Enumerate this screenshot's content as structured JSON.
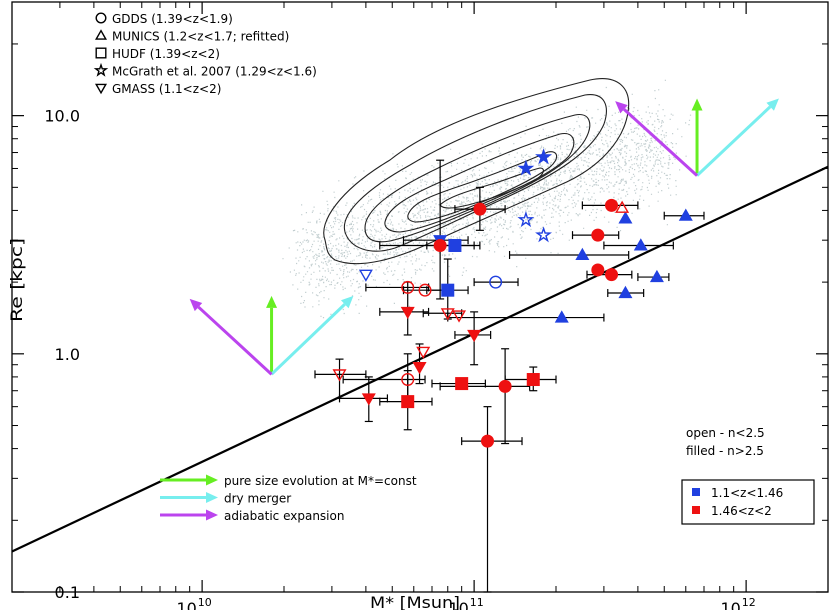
{
  "chart_data": {
    "type": "scatter",
    "title": "",
    "xlabel": "M* [Msun]",
    "ylabel": "Re [kpc]",
    "xscale": "log",
    "yscale": "log",
    "xlim": [
      2000000000.0,
      2000000000000.0
    ],
    "ylim": [
      0.1,
      30
    ],
    "x_ticks": [
      {
        "value": 10000000000.0,
        "base": "10",
        "exp": "10"
      },
      {
        "value": 100000000000.0,
        "base": "10",
        "exp": "11"
      },
      {
        "value": 1000000000000.0,
        "base": "10",
        "exp": "12"
      }
    ],
    "y_ticks": [
      {
        "value": 0.1,
        "label": "0.1"
      },
      {
        "value": 1.0,
        "label": "1.0"
      },
      {
        "value": 10.0,
        "label": "10.0"
      }
    ],
    "legend_samples": [
      {
        "marker": "circle",
        "text": "GDDS (1.39<z<1.9)"
      },
      {
        "marker": "triangle-up",
        "text": "MUNICS (1.2<z<1.7; refitted)"
      },
      {
        "marker": "square",
        "text": "HUDF (1.39<z<2)"
      },
      {
        "marker": "star",
        "text": "McGrath et al. 2007 (1.29<z<1.6)"
      },
      {
        "marker": "triangle-down",
        "text": "GMASS (1.1<z<2)"
      }
    ],
    "legend_arrows": [
      {
        "color": "#66ee22",
        "text": "pure size evolution at M*=const"
      },
      {
        "color": "#77eeee",
        "text": "dry merger"
      },
      {
        "color": "#bb44ee",
        "text": "adiabatic expansion"
      }
    ],
    "fill_note": [
      "open - n<2.5",
      "filled - n>2.5"
    ],
    "redshift_legend": [
      {
        "color": "#2040e0",
        "text": "1.1<z<1.46"
      },
      {
        "color": "#ee1111",
        "text": "1.46<z<2"
      }
    ],
    "colors": {
      "low_z": "#2040e0",
      "high_z": "#ee1111",
      "errorbar": "#000000",
      "contour": "#222222",
      "cloud": "#9aaeb0"
    },
    "reference_line": {
      "x": [
        2000000000.0,
        2000000000000.0
      ],
      "y": [
        0.148,
        6.1
      ]
    },
    "arrow_groups": [
      {
        "origin": [
          18000000000.0,
          0.82
        ],
        "vectors": [
          {
            "type": "size",
            "to": [
              18000000000.0,
              1.75
            ]
          },
          {
            "type": "merger",
            "to": [
              36000000000.0,
              1.75
            ]
          },
          {
            "type": "expansion",
            "to": [
              9000000000.0,
              1.7
            ]
          }
        ]
      },
      {
        "origin": [
          660000000000.0,
          5.6
        ],
        "vectors": [
          {
            "type": "size",
            "to": [
              660000000000.0,
              11.8
            ]
          },
          {
            "type": "merger",
            "to": [
              1320000000000.0,
              11.8
            ]
          },
          {
            "type": "expansion",
            "to": [
              330000000000.0,
              11.5
            ]
          }
        ]
      }
    ],
    "points": [
      {
        "x": 75000000000.0,
        "y": 3.0,
        "marker": "triangle-down",
        "z": "low",
        "filled": true,
        "xerr": [
          55000000000.0,
          95000000000.0
        ],
        "yerr": [
          1.7,
          6.5
        ]
      },
      {
        "x": 40000000000.0,
        "y": 2.15,
        "marker": "triangle-down",
        "z": "low",
        "filled": false
      },
      {
        "x": 155000000000.0,
        "y": 6.0,
        "marker": "star",
        "z": "low",
        "filled": true
      },
      {
        "x": 180000000000.0,
        "y": 6.7,
        "marker": "star",
        "z": "low",
        "filled": true
      },
      {
        "x": 155000000000.0,
        "y": 3.65,
        "marker": "star",
        "z": "low",
        "filled": false
      },
      {
        "x": 180000000000.0,
        "y": 3.15,
        "marker": "star",
        "z": "low",
        "filled": false
      },
      {
        "x": 120000000000.0,
        "y": 2.0,
        "marker": "circle",
        "z": "low",
        "filled": false,
        "xerr": [
          100000000000.0,
          145000000000.0
        ]
      },
      {
        "x": 80000000000.0,
        "y": 1.85,
        "marker": "square",
        "z": "low",
        "filled": true,
        "xerr": [
          67000000000.0,
          95000000000.0
        ],
        "yerr": [
          1.4,
          2.5
        ]
      },
      {
        "x": 85000000000.0,
        "y": 2.85,
        "marker": "square",
        "z": "low",
        "filled": true,
        "xerr": [
          67000000000.0,
          105000000000.0
        ]
      },
      {
        "x": 360000000000.0,
        "y": 3.7,
        "marker": "triangle-up",
        "z": "low",
        "filled": true
      },
      {
        "x": 600000000000.0,
        "y": 3.8,
        "marker": "triangle-up",
        "z": "low",
        "filled": true,
        "xerr": [
          500000000000.0,
          700000000000.0
        ]
      },
      {
        "x": 250000000000.0,
        "y": 2.6,
        "marker": "triangle-up",
        "z": "low",
        "filled": true,
        "xerr": [
          135000000000.0,
          370000000000.0
        ]
      },
      {
        "x": 410000000000.0,
        "y": 2.85,
        "marker": "triangle-up",
        "z": "low",
        "filled": true,
        "xerr": [
          300000000000.0,
          540000000000.0
        ]
      },
      {
        "x": 470000000000.0,
        "y": 2.1,
        "marker": "triangle-up",
        "z": "low",
        "filled": true,
        "xerr": [
          400000000000.0,
          520000000000.0
        ]
      },
      {
        "x": 360000000000.0,
        "y": 1.8,
        "marker": "triangle-up",
        "z": "low",
        "filled": true,
        "xerr": [
          310000000000.0,
          420000000000.0
        ]
      },
      {
        "x": 210000000000.0,
        "y": 1.42,
        "marker": "triangle-up",
        "z": "low",
        "filled": true,
        "xerr": [
          80000000000.0,
          300000000000.0
        ]
      },
      {
        "x": 105000000000.0,
        "y": 4.05,
        "marker": "circle",
        "z": "high",
        "filled": true,
        "xerr": [
          85000000000.0,
          130000000000.0
        ],
        "yerr": [
          3.3,
          5.0
        ]
      },
      {
        "x": 320000000000.0,
        "y": 4.2,
        "marker": "circle",
        "z": "high",
        "filled": true,
        "xerr": [
          250000000000.0,
          400000000000.0
        ]
      },
      {
        "x": 350000000000.0,
        "y": 4.1,
        "marker": "triangle-up",
        "z": "high",
        "filled": false
      },
      {
        "x": 285000000000.0,
        "y": 3.15,
        "marker": "circle",
        "z": "high",
        "filled": true,
        "xerr": [
          230000000000.0,
          340000000000.0
        ]
      },
      {
        "x": 285000000000.0,
        "y": 2.25,
        "marker": "circle",
        "z": "high",
        "filled": true
      },
      {
        "x": 320000000000.0,
        "y": 2.15,
        "marker": "circle",
        "z": "high",
        "filled": true,
        "xerr": [
          260000000000.0,
          380000000000.0
        ]
      },
      {
        "x": 75000000000.0,
        "y": 2.85,
        "marker": "circle",
        "z": "high",
        "filled": true,
        "xerr": [
          45000000000.0,
          100000000000.0
        ]
      },
      {
        "x": 57000000000.0,
        "y": 1.9,
        "marker": "circle",
        "z": "high",
        "filled": false,
        "xerr": [
          40000000000.0,
          68000000000.0
        ]
      },
      {
        "x": 66000000000.0,
        "y": 1.85,
        "marker": "circle",
        "z": "high",
        "filled": false,
        "xerr": [
          55000000000.0,
          80000000000.0
        ]
      },
      {
        "x": 57000000000.0,
        "y": 1.5,
        "marker": "triangle-down",
        "z": "high",
        "filled": true,
        "xerr": [
          45000000000.0,
          68000000000.0
        ],
        "yerr": [
          1.2,
          2.0
        ]
      },
      {
        "x": 80000000000.0,
        "y": 1.48,
        "marker": "triangle-down",
        "z": "high",
        "filled": false,
        "xerr": [
          65000000000.0,
          90000000000.0
        ]
      },
      {
        "x": 88000000000.0,
        "y": 1.45,
        "marker": "triangle-down",
        "z": "high",
        "filled": false
      },
      {
        "x": 100000000000.0,
        "y": 1.2,
        "marker": "triangle-down",
        "z": "high",
        "filled": true,
        "xerr": [
          85000000000.0,
          115000000000.0
        ],
        "yerr": [
          0.9,
          1.5
        ]
      },
      {
        "x": 65000000000.0,
        "y": 1.02,
        "marker": "triangle-down",
        "z": "high",
        "filled": false
      },
      {
        "x": 63000000000.0,
        "y": 0.88,
        "marker": "triangle-down",
        "z": "high",
        "filled": true,
        "yerr": [
          0.75,
          1.1
        ]
      },
      {
        "x": 32000000000.0,
        "y": 0.82,
        "marker": "triangle-down",
        "z": "high",
        "filled": false,
        "xerr": [
          26000000000.0,
          40000000000.0
        ],
        "yerr": [
          0.65,
          0.95
        ]
      },
      {
        "x": 57000000000.0,
        "y": 0.78,
        "marker": "circle",
        "z": "high",
        "filled": false,
        "xerr": [
          33000000000.0,
          66000000000.0
        ],
        "yerr": [
          0.6,
          1.0
        ]
      },
      {
        "x": 41000000000.0,
        "y": 0.65,
        "marker": "triangle-down",
        "z": "high",
        "filled": true,
        "xerr": [
          32000000000.0,
          48000000000.0
        ],
        "yerr": [
          0.52,
          0.8
        ]
      },
      {
        "x": 57000000000.0,
        "y": 0.63,
        "marker": "square",
        "z": "high",
        "filled": true,
        "xerr": [
          45000000000.0,
          70000000000.0
        ],
        "yerr": [
          0.48,
          0.85
        ]
      },
      {
        "x": 90000000000.0,
        "y": 0.75,
        "marker": "square",
        "z": "high",
        "filled": true,
        "xerr": [
          70000000000.0,
          110000000000.0
        ]
      },
      {
        "x": 165000000000.0,
        "y": 0.78,
        "marker": "square",
        "z": "high",
        "filled": true,
        "xerr": [
          130000000000.0,
          200000000000.0
        ],
        "yerr": [
          0.7,
          0.88
        ]
      },
      {
        "x": 130000000000.0,
        "y": 0.73,
        "marker": "circle",
        "z": "high",
        "filled": true,
        "xerr": [
          75000000000.0,
          160000000000.0
        ],
        "yerr": [
          0.42,
          1.05
        ]
      },
      {
        "x": 112000000000.0,
        "y": 0.43,
        "marker": "circle",
        "z": "high",
        "filled": true,
        "xerr": [
          90000000000.0,
          150000000000.0
        ],
        "yerr": [
          0.1,
          0.6
        ]
      }
    ]
  }
}
